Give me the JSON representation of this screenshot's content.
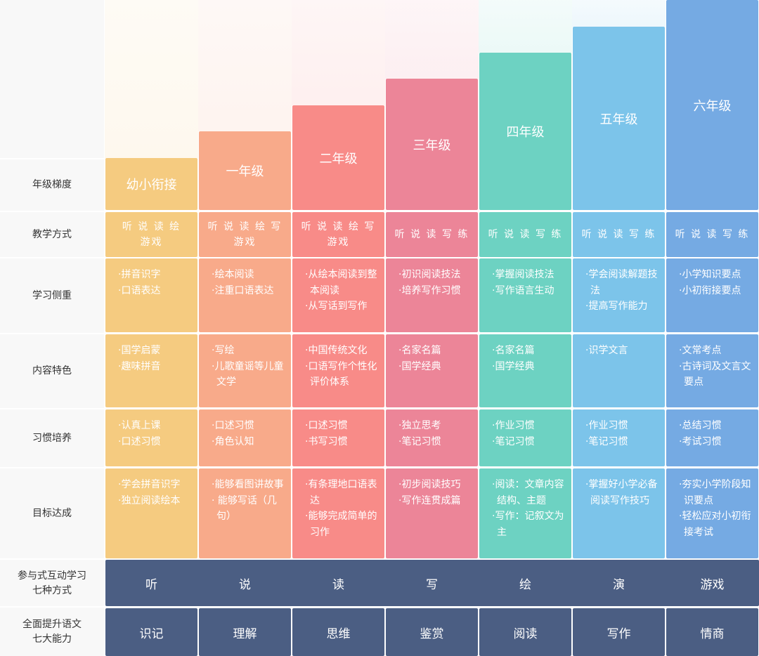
{
  "row_labels": [
    "年级梯度",
    "教学方式",
    "学习侧重",
    "内容特色",
    "习惯培养",
    "目标达成",
    "参与式互动学习\n七种方式",
    "全面提升语文\n七大能力"
  ],
  "grades": [
    {
      "name": "幼小衔接",
      "color": "#f5cb80",
      "method": "听 说 读 绘\n游戏",
      "focus": [
        "拼音识字",
        "口语表达"
      ],
      "content": [
        "国学启蒙",
        "趣味拼音"
      ],
      "habits": [
        "认真上课",
        "口述习惯"
      ],
      "goals": [
        "学会拼音识字",
        "独立阅读绘本"
      ]
    },
    {
      "name": "一年级",
      "color": "#f8aa8a",
      "method": "听 说 读 绘 写\n游戏",
      "focus": [
        "绘本阅读",
        "注重口语表达"
      ],
      "content": [
        "写绘",
        "儿歌童谣等儿童文学"
      ],
      "habits": [
        "口述习惯",
        "角色认知"
      ],
      "goals": [
        "能够看图讲故事",
        " 能够写话（几句）"
      ]
    },
    {
      "name": "二年级",
      "color": "#f88b88",
      "method": "听 说 读 绘 写\n游戏",
      "focus": [
        "从绘本阅读到整本阅读",
        "从写话到写作"
      ],
      "content": [
        "中国传统文化",
        "口语写作个性化评价体系"
      ],
      "habits": [
        "口述习惯",
        "书写习惯"
      ],
      "goals": [
        "有条理地口语表达",
        "能够完成简单的习作"
      ]
    },
    {
      "name": "三年级",
      "color": "#ec8598",
      "method": "听 说 读 写 练",
      "focus": [
        "初识阅读技法",
        "培养写作习惯"
      ],
      "content": [
        "名家名篇",
        "国学经典"
      ],
      "habits": [
        "独立思考",
        "笔记习惯"
      ],
      "goals": [
        "初步阅读技巧",
        "写作连贯成篇"
      ]
    },
    {
      "name": "四年级",
      "color": "#6dd2c2",
      "method": "听 说 读 写 练",
      "focus": [
        "掌握阅读技法",
        "写作语言生动"
      ],
      "content": [
        "名家名篇",
        "国学经典"
      ],
      "habits": [
        "作业习惯",
        "笔记习惯"
      ],
      "goals": [
        "阅读：文章内容结构、主题",
        "写作：记叙文为主"
      ]
    },
    {
      "name": "五年级",
      "color": "#7cc4ea",
      "method": "听 说 读 写 练",
      "focus": [
        "学会阅读解题技法",
        "提高写作能力"
      ],
      "content": [
        "识学文言"
      ],
      "habits": [
        "作业习惯",
        "笔记习惯"
      ],
      "goals": [
        "掌握好小学必备阅读写作技巧"
      ]
    },
    {
      "name": "六年级",
      "color": "#75aae3",
      "method": "听 说 读 写 练",
      "focus": [
        "小学知识要点",
        "小初衔接要点"
      ],
      "content": [
        "文常考点",
        "古诗词及文言文要点"
      ],
      "habits": [
        "总结习惯",
        "考试习惯"
      ],
      "goals": [
        "夯实小学阶段知识要点",
        "轻松应对小初衔接考试"
      ]
    }
  ],
  "seven_methods": [
    "听",
    "说",
    "读",
    "写",
    "绘",
    "演",
    "游戏"
  ],
  "seven_abilities": [
    "识记",
    "理解",
    "思维",
    "鉴赏",
    "阅读",
    "写作",
    "情商"
  ],
  "navy": "#4b5e83"
}
